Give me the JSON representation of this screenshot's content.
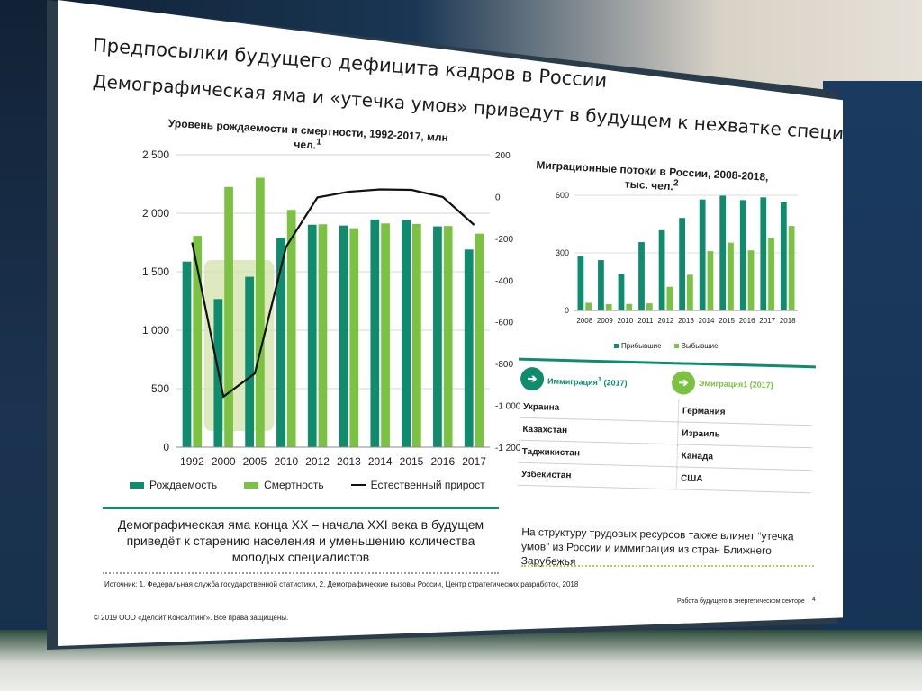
{
  "slide": {
    "title": "Предпосылки будущего дефицита кадров в России",
    "subtitle": "Демографическая яма и «утечка умов» приведут в будущем к нехватке специалистов",
    "left_caption": "Демографическая яма конца XX – начала XXI века в будущем приведёт к старению населения и уменьшению количества молодых специалистов",
    "right_caption": "На структуру трудовых ресурсов также влияет “утечка умов” из России и иммиграция из стран Ближнего Зарубежья",
    "source": "Источник: 1. Федеральная служба государственной статистики, 2. Демографические вызовы России, Центр стратегических разработок, 2018",
    "copyright": "© 2019 ООО «Делойт Консалтинг». Все права защищены.",
    "footer_right": "Работа будущего в энергетическом секторе",
    "page_number": "4"
  },
  "colors": {
    "dark_green": "#0f8b6e",
    "light_green": "#7cc242",
    "line": "#111111",
    "highlight": "#d7e4b0"
  },
  "chart_data": [
    {
      "type": "bar",
      "title": "Уровень рождаемости и смертности, 1992-2017, млн чел.",
      "title_sup": "1",
      "categories": [
        "1992",
        "2000",
        "2005",
        "2010",
        "2012",
        "2013",
        "2014",
        "2015",
        "2016",
        "2017"
      ],
      "series": [
        {
          "name": "Рождаемость",
          "values": [
            1587,
            1267,
            1457,
            1789,
            1902,
            1895,
            1947,
            1940,
            1888,
            1690
          ]
        },
        {
          "name": "Смертность",
          "values": [
            1807,
            2225,
            2304,
            2029,
            1906,
            1872,
            1913,
            1908,
            1891,
            1826
          ]
        },
        {
          "name": "Естественный прирост",
          "axis": "right",
          "type": "line",
          "values": [
            -220,
            -958,
            -847,
            -240,
            -4,
            23,
            34,
            32,
            -2,
            -136
          ]
        }
      ],
      "ylim": [
        0,
        2500
      ],
      "yticks": [
        "0",
        "500",
        "1 000",
        "1 500",
        "2 000",
        "2 500"
      ],
      "y2lim": [
        -1200,
        200
      ],
      "y2ticks": [
        "-1 200",
        "-1 000",
        "-800",
        "-600",
        "-400",
        "-200",
        "0",
        "200"
      ],
      "legend_position": "bottom"
    },
    {
      "type": "bar",
      "title": "Миграционные потоки в России, 2008-2018, тыс. чел.",
      "title_sup": "2",
      "categories": [
        "2008",
        "2009",
        "2010",
        "2011",
        "2012",
        "2013",
        "2014",
        "2015",
        "2016",
        "2017",
        "2018"
      ],
      "series": [
        {
          "name": "Прибывшие",
          "values": [
            282,
            262,
            191,
            356,
            418,
            482,
            578,
            598,
            575,
            589,
            564
          ]
        },
        {
          "name": "Выбывшие",
          "values": [
            40,
            33,
            34,
            37,
            123,
            186,
            309,
            353,
            313,
            377,
            440
          ]
        }
      ],
      "ylim": [
        0,
        600
      ],
      "yticks": [
        "0",
        "300",
        "600"
      ],
      "legend_position": "bottom"
    }
  ],
  "migration_table": {
    "immigration_header": "Иммиграция",
    "immigration_sup": "1",
    "immigration_year": "(2017)",
    "emigration_header": "Эмиграция1 (2017)",
    "rows": [
      {
        "left": "Украина",
        "right": "Германия"
      },
      {
        "left": "Казахстан",
        "right": "Израиль"
      },
      {
        "left": "Таджикистан",
        "right": "Канада"
      },
      {
        "left": "Узбекистан",
        "right": "США"
      }
    ]
  }
}
